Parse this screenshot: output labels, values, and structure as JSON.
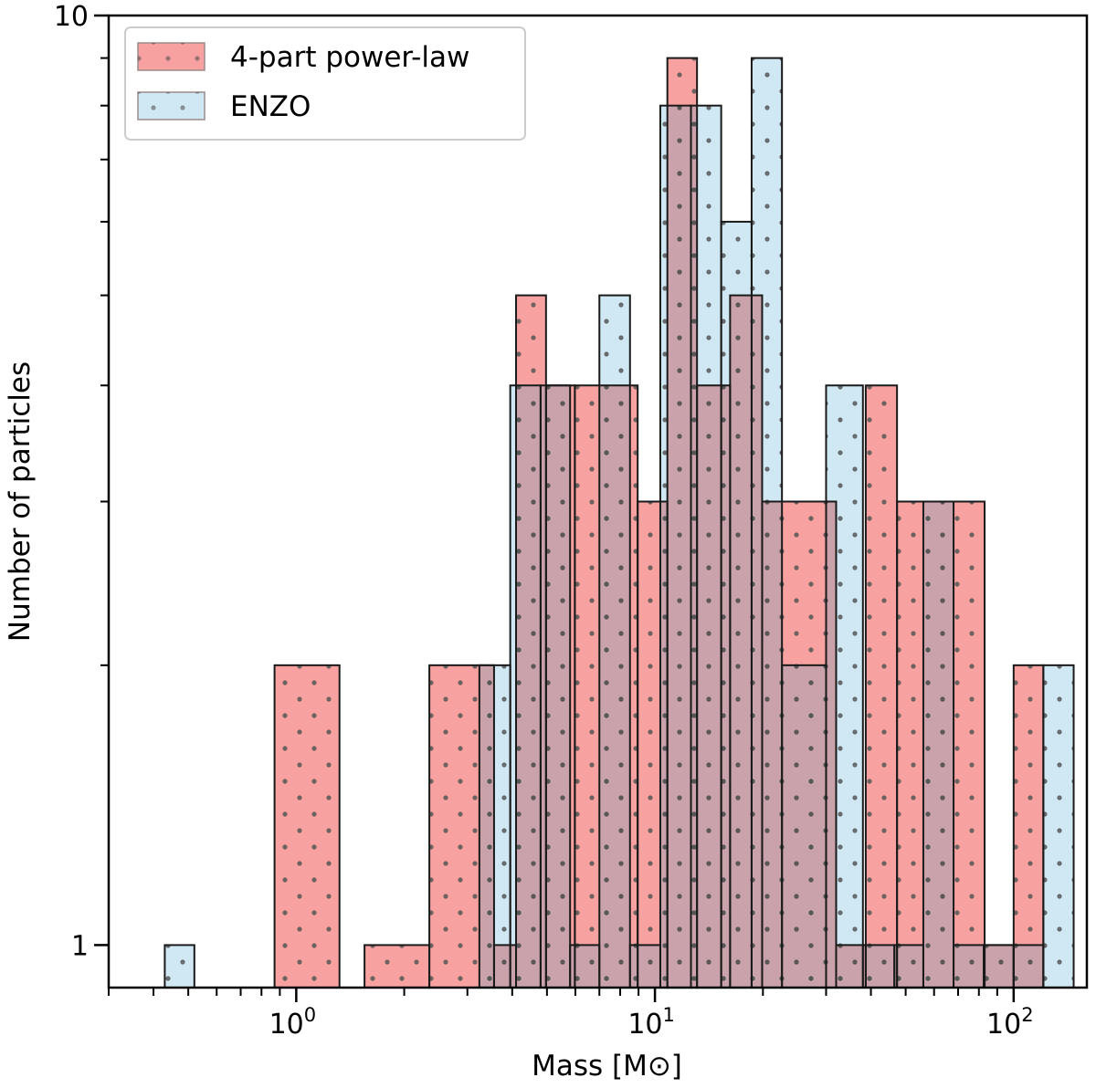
{
  "chart_data": {
    "type": "histogram",
    "title": "",
    "xlabel": "Mass [M⊙]",
    "ylabel": "Number of particles",
    "xscale": "log",
    "yscale": "log",
    "xlim": [
      0.3,
      160
    ],
    "ylim": [
      0.9,
      10
    ],
    "x_ticks": [
      {
        "value": 1,
        "label": "10",
        "exp": "0"
      },
      {
        "value": 10,
        "label": "10",
        "exp": "1"
      },
      {
        "value": 100,
        "label": "10",
        "exp": "2"
      }
    ],
    "y_ticks": [
      {
        "value": 1,
        "label": "1"
      },
      {
        "value": 10,
        "label": "10"
      }
    ],
    "legend_position": "top-left",
    "grid": false,
    "hatch": "dots",
    "series": [
      {
        "name": "4-part power-law",
        "color": "#f7a1a1",
        "bins": [
          {
            "x0": 0.87,
            "x1": 1.32,
            "count": 2
          },
          {
            "x0": 1.55,
            "x1": 2.35,
            "count": 1
          },
          {
            "x0": 2.35,
            "x1": 3.56,
            "count": 2
          },
          {
            "x0": 3.56,
            "x1": 4.1,
            "count": 1
          },
          {
            "x0": 4.1,
            "x1": 4.97,
            "count": 5
          },
          {
            "x0": 4.97,
            "x1": 5.98,
            "count": 4
          },
          {
            "x0": 5.98,
            "x1": 8.95,
            "count": 4
          },
          {
            "x0": 8.95,
            "x1": 10.83,
            "count": 3
          },
          {
            "x0": 10.83,
            "x1": 13.1,
            "count": 9
          },
          {
            "x0": 13.1,
            "x1": 16.2,
            "count": 4
          },
          {
            "x0": 16.2,
            "x1": 19.9,
            "count": 5
          },
          {
            "x0": 19.9,
            "x1": 32.0,
            "count": 3
          },
          {
            "x0": 32.0,
            "x1": 38.7,
            "count": 1
          },
          {
            "x0": 38.7,
            "x1": 47.3,
            "count": 4
          },
          {
            "x0": 47.3,
            "x1": 83.0,
            "count": 3
          },
          {
            "x0": 83.0,
            "x1": 100.0,
            "count": 1
          },
          {
            "x0": 100.0,
            "x1": 121.0,
            "count": 2
          }
        ]
      },
      {
        "name": "ENZO",
        "color": "#cfe8f3",
        "bins": [
          {
            "x0": 0.43,
            "x1": 0.52,
            "count": 1
          },
          {
            "x0": 3.24,
            "x1": 3.95,
            "count": 2
          },
          {
            "x0": 3.95,
            "x1": 4.8,
            "count": 4
          },
          {
            "x0": 4.8,
            "x1": 5.8,
            "count": 4
          },
          {
            "x0": 5.8,
            "x1": 7.0,
            "count": 1
          },
          {
            "x0": 7.0,
            "x1": 8.52,
            "count": 5
          },
          {
            "x0": 8.52,
            "x1": 10.35,
            "count": 1
          },
          {
            "x0": 10.35,
            "x1": 12.6,
            "count": 8
          },
          {
            "x0": 12.6,
            "x1": 15.3,
            "count": 8
          },
          {
            "x0": 15.3,
            "x1": 18.6,
            "count": 6
          },
          {
            "x0": 18.6,
            "x1": 22.6,
            "count": 9
          },
          {
            "x0": 22.6,
            "x1": 30.0,
            "count": 2
          },
          {
            "x0": 30.0,
            "x1": 38.0,
            "count": 4
          },
          {
            "x0": 38.0,
            "x1": 46.5,
            "count": 1
          },
          {
            "x0": 46.5,
            "x1": 56.0,
            "count": 1
          },
          {
            "x0": 56.0,
            "x1": 68.0,
            "count": 3
          },
          {
            "x0": 68.0,
            "x1": 82.5,
            "count": 1
          },
          {
            "x0": 82.5,
            "x1": 100.0,
            "count": 1
          },
          {
            "x0": 100.0,
            "x1": 121.0,
            "count": 1
          },
          {
            "x0": 121.0,
            "x1": 147.0,
            "count": 2
          }
        ]
      }
    ],
    "overlap_color": "#c9a2ab"
  }
}
